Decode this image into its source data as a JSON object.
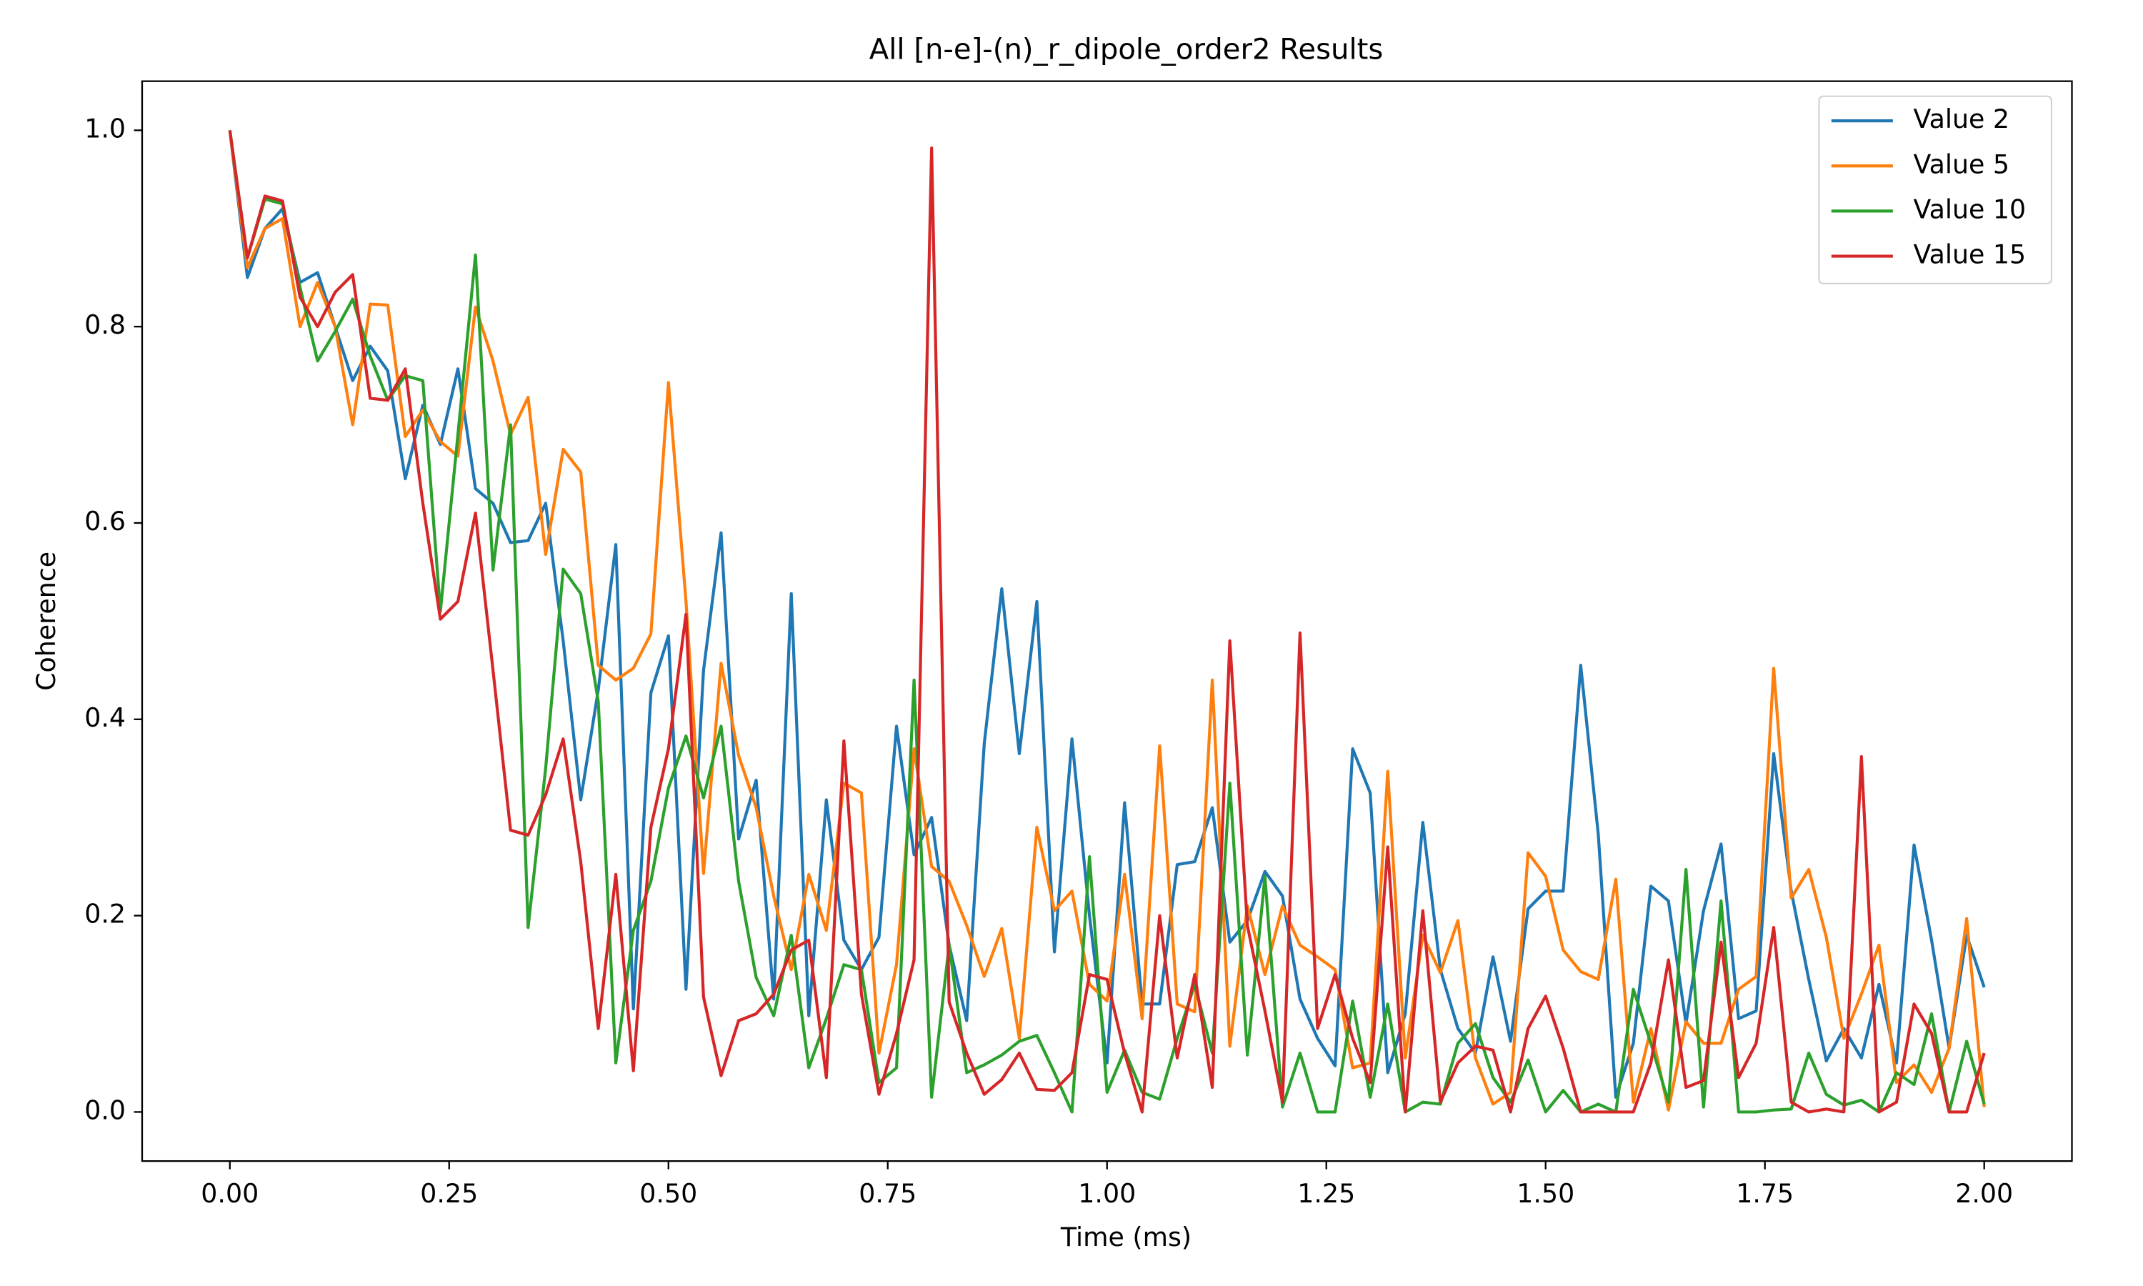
{
  "chart_data": {
    "type": "line",
    "title": "All [n-e]-(n)_r_dipole_order2 Results",
    "xlabel": "Time (ms)",
    "ylabel": "Coherence",
    "x": [
      0,
      0.02,
      0.04,
      0.06,
      0.08,
      0.1,
      0.12,
      0.14,
      0.16,
      0.18,
      0.2,
      0.22,
      0.24,
      0.26,
      0.28,
      0.3,
      0.32,
      0.34,
      0.36,
      0.38,
      0.4,
      0.42,
      0.44,
      0.46,
      0.48,
      0.5,
      0.52,
      0.54,
      0.56,
      0.58,
      0.6,
      0.62,
      0.64,
      0.66,
      0.68,
      0.7,
      0.72,
      0.74,
      0.76,
      0.78,
      0.8,
      0.82,
      0.84,
      0.86,
      0.88,
      0.9,
      0.92,
      0.94,
      0.96,
      0.98,
      1,
      1.02,
      1.04,
      1.06,
      1.08,
      1.1,
      1.12,
      1.14,
      1.16,
      1.18,
      1.2,
      1.22,
      1.24,
      1.26,
      1.28,
      1.3,
      1.32,
      1.34,
      1.36,
      1.38,
      1.4,
      1.42,
      1.44,
      1.46,
      1.48,
      1.5,
      1.52,
      1.54,
      1.56,
      1.58,
      1.6,
      1.62,
      1.64,
      1.66,
      1.68,
      1.7,
      1.72,
      1.74,
      1.76,
      1.78,
      1.8,
      1.82,
      1.84,
      1.86,
      1.88,
      1.9,
      1.92,
      1.94,
      1.96,
      1.98,
      2
    ],
    "series": [
      {
        "name": "Value 2",
        "color": "#1f77b4",
        "values": [
          1.0,
          0.85,
          0.9,
          0.92,
          0.845,
          0.855,
          0.8,
          0.745,
          0.78,
          0.755,
          0.645,
          0.72,
          0.68,
          0.757,
          0.635,
          0.62,
          0.58,
          0.582,
          0.62,
          0.48,
          0.318,
          0.43,
          0.578,
          0.105,
          0.427,
          0.485,
          0.125,
          0.45,
          0.59,
          0.278,
          0.338,
          0.115,
          0.528,
          0.098,
          0.318,
          0.175,
          0.145,
          0.178,
          0.393,
          0.262,
          0.3,
          0.17,
          0.093,
          0.375,
          0.533,
          0.365,
          0.52,
          0.163,
          0.38,
          0.2,
          0.05,
          0.315,
          0.11,
          0.11,
          0.252,
          0.255,
          0.31,
          0.173,
          0.195,
          0.245,
          0.22,
          0.115,
          0.075,
          0.047,
          0.37,
          0.325,
          0.04,
          0.1,
          0.295,
          0.145,
          0.085,
          0.06,
          0.158,
          0.072,
          0.207,
          0.225,
          0.225,
          0.455,
          0.283,
          0.015,
          0.07,
          0.23,
          0.215,
          0.09,
          0.205,
          0.273,
          0.095,
          0.103,
          0.365,
          0.225,
          0.135,
          0.052,
          0.085,
          0.055,
          0.13,
          0.05,
          0.272,
          0.175,
          0.065,
          0.18,
          0.127
        ]
      },
      {
        "name": "Value 5",
        "color": "#ff7f0e",
        "values": [
          1.0,
          0.86,
          0.9,
          0.91,
          0.8,
          0.845,
          0.8,
          0.7,
          0.823,
          0.822,
          0.688,
          0.715,
          0.683,
          0.668,
          0.82,
          0.765,
          0.69,
          0.728,
          0.568,
          0.675,
          0.652,
          0.455,
          0.44,
          0.452,
          0.487,
          0.743,
          0.52,
          0.243,
          0.457,
          0.363,
          0.31,
          0.22,
          0.145,
          0.242,
          0.185,
          0.335,
          0.325,
          0.06,
          0.15,
          0.37,
          0.25,
          0.235,
          0.19,
          0.138,
          0.187,
          0.075,
          0.29,
          0.205,
          0.225,
          0.13,
          0.113,
          0.242,
          0.095,
          0.373,
          0.11,
          0.102,
          0.44,
          0.067,
          0.21,
          0.14,
          0.21,
          0.17,
          0.158,
          0.145,
          0.045,
          0.05,
          0.347,
          0.055,
          0.18,
          0.142,
          0.195,
          0.055,
          0.008,
          0.02,
          0.264,
          0.24,
          0.165,
          0.143,
          0.135,
          0.237,
          0.01,
          0.085,
          0.002,
          0.092,
          0.07,
          0.07,
          0.125,
          0.138,
          0.452,
          0.218,
          0.247,
          0.178,
          0.075,
          0.12,
          0.17,
          0.03,
          0.048,
          0.02,
          0.065,
          0.197,
          0.005
        ]
      },
      {
        "name": "Value 10",
        "color": "#2ca02c",
        "values": [
          1.0,
          0.87,
          0.93,
          0.925,
          0.84,
          0.765,
          0.795,
          0.828,
          0.77,
          0.725,
          0.75,
          0.745,
          0.51,
          0.69,
          0.873,
          0.552,
          0.7,
          0.188,
          0.35,
          0.553,
          0.528,
          0.418,
          0.05,
          0.185,
          0.235,
          0.33,
          0.383,
          0.32,
          0.393,
          0.235,
          0.137,
          0.098,
          0.18,
          0.045,
          0.095,
          0.15,
          0.145,
          0.03,
          0.045,
          0.44,
          0.015,
          0.17,
          0.04,
          0.048,
          0.058,
          0.072,
          0.078,
          0.04,
          0.0,
          0.26,
          0.02,
          0.063,
          0.02,
          0.013,
          0.075,
          0.13,
          0.06,
          0.335,
          0.058,
          0.24,
          0.005,
          0.06,
          0.0,
          0.0,
          0.113,
          0.015,
          0.11,
          0.0,
          0.01,
          0.008,
          0.07,
          0.09,
          0.035,
          0.01,
          0.053,
          0.0,
          0.022,
          0.0,
          0.008,
          0.0,
          0.125,
          0.07,
          0.01,
          0.247,
          0.005,
          0.215,
          0.0,
          0.0,
          0.002,
          0.003,
          0.06,
          0.018,
          0.007,
          0.012,
          0.0,
          0.04,
          0.028,
          0.1,
          0.0,
          0.072,
          0.008
        ]
      },
      {
        "name": "Value 15",
        "color": "#d62728",
        "values": [
          1.0,
          0.87,
          0.933,
          0.928,
          0.83,
          0.8,
          0.835,
          0.853,
          0.727,
          0.725,
          0.757,
          0.62,
          0.502,
          0.52,
          0.61,
          0.45,
          0.287,
          0.282,
          0.323,
          0.38,
          0.255,
          0.085,
          0.242,
          0.042,
          0.29,
          0.37,
          0.507,
          0.117,
          0.037,
          0.093,
          0.1,
          0.12,
          0.165,
          0.175,
          0.035,
          0.378,
          0.12,
          0.018,
          0.08,
          0.155,
          0.982,
          0.112,
          0.06,
          0.018,
          0.033,
          0.06,
          0.023,
          0.022,
          0.04,
          0.14,
          0.135,
          0.06,
          0.0,
          0.2,
          0.055,
          0.14,
          0.025,
          0.48,
          0.19,
          0.103,
          0.01,
          0.488,
          0.085,
          0.14,
          0.075,
          0.03,
          0.27,
          0.0,
          0.205,
          0.01,
          0.05,
          0.067,
          0.063,
          0.0,
          0.085,
          0.118,
          0.065,
          0.0,
          0.0,
          0.0,
          0.0,
          0.05,
          0.155,
          0.025,
          0.032,
          0.173,
          0.035,
          0.07,
          0.188,
          0.01,
          0.0,
          0.003,
          0.0,
          0.362,
          0.0,
          0.01,
          0.11,
          0.08,
          0.0,
          0.0,
          0.06
        ]
      }
    ],
    "xlim": [
      -0.1,
      2.1
    ],
    "xticks": [
      {
        "value": 0,
        "label": "0.00"
      },
      0.25,
      {
        "value": 0.5,
        "label": "0.50"
      },
      0.75,
      {
        "value": 1,
        "label": "1.00"
      },
      1.25,
      {
        "value": 1.5,
        "label": "1.50"
      },
      1.75,
      {
        "value": 2,
        "label": "2.00"
      }
    ],
    "ylim": [
      -0.05,
      1.05
    ],
    "yticks": [
      {
        "value": 0,
        "label": "0.0"
      },
      0.2,
      0.4,
      0.6,
      0.8,
      {
        "value": 1,
        "label": "1.0"
      }
    ],
    "legend": "upper right"
  }
}
